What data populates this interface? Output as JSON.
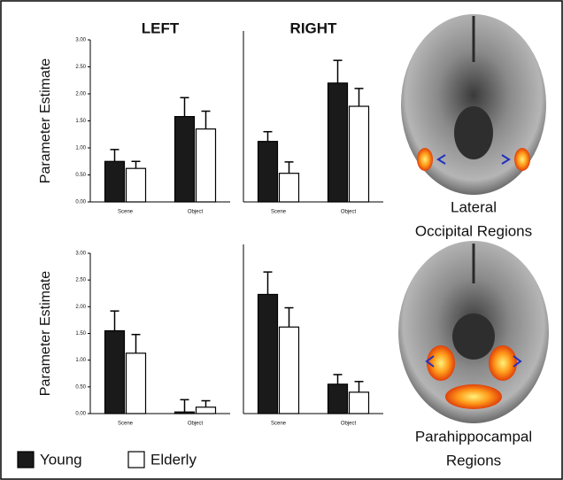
{
  "chart_data": [
    {
      "type": "bar",
      "title": "LEFT",
      "y_label": "Parameter Estimate",
      "categories": [
        "Scene",
        "Object"
      ],
      "series": [
        {
          "name": "Young",
          "color": "#1a1a1a",
          "values": [
            0.75,
            1.58
          ],
          "errors": [
            0.22,
            0.35
          ]
        },
        {
          "name": "Elderly",
          "color": "#ffffff",
          "values": [
            0.62,
            1.35
          ],
          "errors": [
            0.13,
            0.33
          ]
        }
      ],
      "ylim": [
        0,
        3
      ],
      "yticks": [
        {
          "value": 0,
          "label": "0.00"
        },
        {
          "value": 0.5,
          "label": "0.50"
        },
        {
          "value": 1,
          "label": "1.00"
        },
        {
          "value": 1.5,
          "label": "1.50"
        },
        {
          "value": 2,
          "label": "2.00"
        },
        {
          "value": 2.5,
          "label": "2.50"
        },
        {
          "value": 3,
          "label": "3.00"
        }
      ]
    },
    {
      "type": "bar",
      "title": "RIGHT",
      "categories": [
        "Scene",
        "Object"
      ],
      "series": [
        {
          "name": "Young",
          "color": "#1a1a1a",
          "values": [
            1.12,
            2.2
          ],
          "errors": [
            0.18,
            0.42
          ]
        },
        {
          "name": "Elderly",
          "color": "#ffffff",
          "values": [
            0.53,
            1.77
          ],
          "errors": [
            0.21,
            0.33
          ]
        }
      ],
      "ylim": [
        0,
        3
      ]
    },
    {
      "type": "bar",
      "y_label": "Parameter Estimate",
      "categories": [
        "Scene",
        "Object"
      ],
      "series": [
        {
          "name": "Young",
          "color": "#1a1a1a",
          "values": [
            1.55,
            0.03
          ],
          "errors": [
            0.37,
            0.23
          ]
        },
        {
          "name": "Elderly",
          "color": "#ffffff",
          "values": [
            1.13,
            0.12
          ],
          "errors": [
            0.35,
            0.12
          ]
        }
      ],
      "ylim": [
        0,
        3
      ],
      "yticks": [
        {
          "value": 0,
          "label": "0.00"
        },
        {
          "value": 0.5,
          "label": "0.50"
        },
        {
          "value": 1,
          "label": "1.00"
        },
        {
          "value": 1.5,
          "label": "1.50"
        },
        {
          "value": 2,
          "label": "2.00"
        },
        {
          "value": 2.5,
          "label": "2.50"
        },
        {
          "value": 3,
          "label": "3.00"
        }
      ]
    },
    {
      "type": "bar",
      "categories": [
        "Scene",
        "Object"
      ],
      "series": [
        {
          "name": "Young",
          "color": "#1a1a1a",
          "values": [
            2.23,
            0.55
          ],
          "errors": [
            0.42,
            0.18
          ]
        },
        {
          "name": "Elderly",
          "color": "#ffffff",
          "values": [
            1.62,
            0.4
          ],
          "errors": [
            0.36,
            0.2
          ]
        }
      ],
      "ylim": [
        0,
        3
      ]
    }
  ],
  "brain_labels": [
    [
      "Lateral",
      "Occipital Regions"
    ],
    [
      "Parahippocampal",
      "Regions"
    ]
  ]
}
